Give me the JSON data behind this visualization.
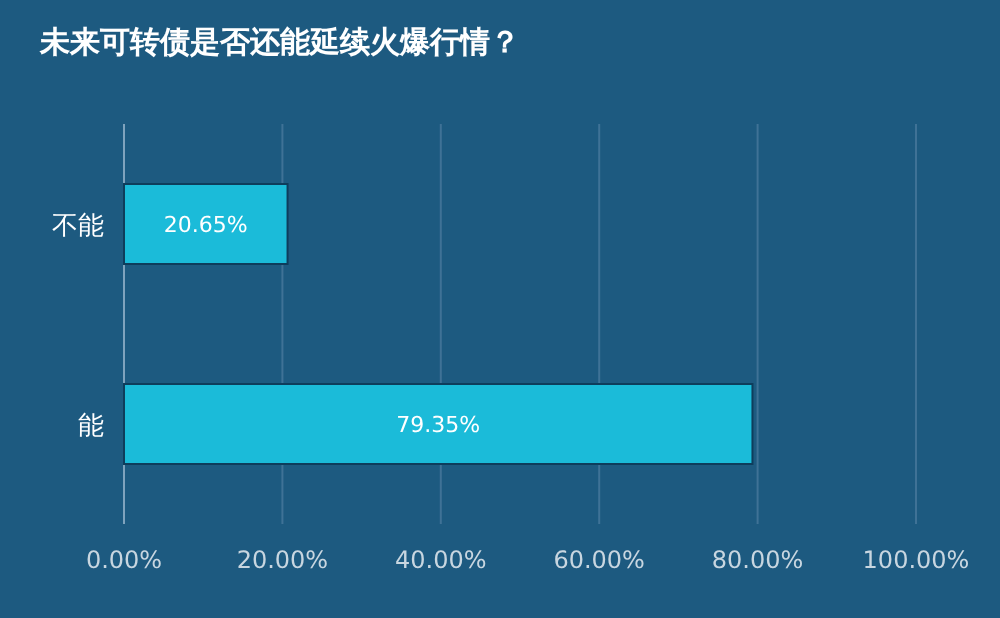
{
  "chart_data": {
    "type": "bar",
    "orientation": "horizontal",
    "title": "未来可转债是否还能延续火爆行情？",
    "categories": [
      "不能",
      "能"
    ],
    "values": [
      20.65,
      79.35
    ],
    "value_labels": [
      "20.65%",
      "79.35%"
    ],
    "color": "#1bbbd9",
    "xlim": [
      0,
      100
    ],
    "xticks": [
      {
        "value": 0,
        "label": "0.00%"
      },
      {
        "value": 20,
        "label": "20.00%"
      },
      {
        "value": 40,
        "label": "40.00%"
      },
      {
        "value": 60,
        "label": "60.00%"
      },
      {
        "value": 80,
        "label": "80.00%"
      },
      {
        "value": 100,
        "label": "100.00%"
      }
    ],
    "grid": "x"
  }
}
